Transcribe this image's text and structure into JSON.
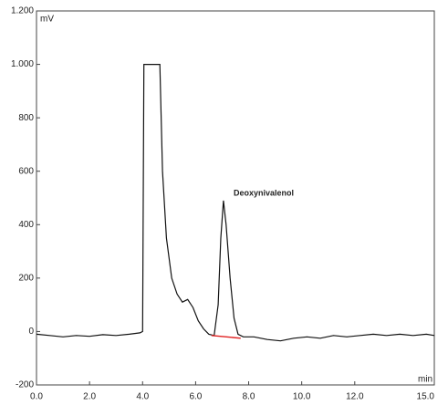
{
  "chart_data": {
    "type": "line",
    "y_label": "mV",
    "x_label": "min",
    "annotation": "Deoxynivalenol",
    "xlim": [
      0,
      15
    ],
    "ylim": [
      -200,
      1200
    ],
    "xticks": [
      {
        "value": 0,
        "label": "0.0"
      },
      {
        "value": 2,
        "label": "2.0"
      },
      {
        "value": 4,
        "label": "4.0"
      },
      {
        "value": 6,
        "label": "6.0"
      },
      {
        "value": 8,
        "label": "8.0"
      },
      {
        "value": 10,
        "label": "10.0"
      },
      {
        "value": 12,
        "label": "12.0"
      },
      {
        "value": 15,
        "label": "15.0"
      }
    ],
    "yticks": [
      -200,
      0,
      200,
      400,
      600,
      800,
      {
        "value": 1000,
        "label": "1.000"
      },
      {
        "value": 1200,
        "label": "1.200"
      }
    ],
    "series": [
      {
        "color": "#111111",
        "x": [
          0,
          0.5,
          1,
          1.5,
          2,
          2.5,
          3,
          3.5,
          3.9,
          4.0,
          4.05,
          4.65,
          4.75,
          4.9,
          5.1,
          5.3,
          5.5,
          5.7,
          5.9,
          6.1,
          6.3,
          6.5,
          6.7,
          6.85,
          6.95,
          7.05,
          7.15,
          7.3,
          7.45,
          7.6,
          7.8,
          8.2,
          8.7,
          9.2,
          9.7,
          10.2,
          10.7,
          11.2,
          11.7,
          12.2,
          12.7,
          13.2,
          13.7,
          14.2,
          14.7,
          15
        ],
        "values": [
          -10,
          -15,
          -20,
          -15,
          -18,
          -12,
          -15,
          -10,
          -5,
          0,
          1000,
          1000,
          600,
          350,
          200,
          140,
          110,
          120,
          90,
          40,
          10,
          -10,
          -15,
          100,
          350,
          490,
          400,
          200,
          50,
          -10,
          -20,
          -20,
          -30,
          -35,
          -25,
          -20,
          -25,
          -15,
          -20,
          -15,
          -10,
          -15,
          -10,
          -15,
          -10,
          -15
        ]
      },
      {
        "color": "#e02020",
        "x": [
          6.6,
          7.7
        ],
        "values": [
          -15,
          -25
        ]
      }
    ]
  }
}
